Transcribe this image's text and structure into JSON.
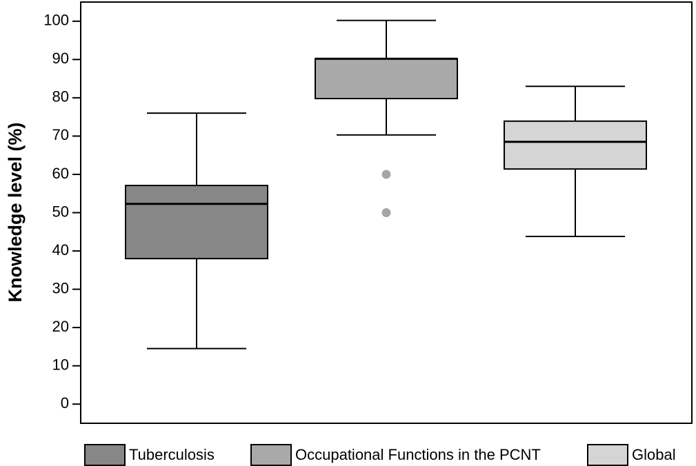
{
  "chart_data": {
    "type": "boxplot",
    "title": "",
    "xlabel": "",
    "ylabel": "Knowledge level (%)",
    "ylim": [
      -5,
      105
    ],
    "yticks": [
      0,
      10,
      20,
      30,
      40,
      50,
      60,
      70,
      80,
      90,
      100
    ],
    "grid": false,
    "legend_position": "bottom",
    "series": [
      {
        "name": "Tuberculosis",
        "color": "#878787",
        "whisker_low": 14.5,
        "q1": 38,
        "median": 52.3,
        "q3": 57.1,
        "whisker_high": 76,
        "outliers": []
      },
      {
        "name": "Occupational Functions in the PCNT",
        "color": "#a9a9a9",
        "whisker_low": 70.3,
        "q1": 79.8,
        "median": 90.2,
        "q3": 90.2,
        "whisker_high": 100.2,
        "outliers": [
          60,
          50
        ]
      },
      {
        "name": "Global",
        "color": "#d5d5d5",
        "whisker_low": 43.8,
        "q1": 61.4,
        "median": 68.5,
        "q3": 73.9,
        "whisker_high": 83,
        "outliers": []
      }
    ],
    "outlier_color": "#a6a6a6"
  }
}
